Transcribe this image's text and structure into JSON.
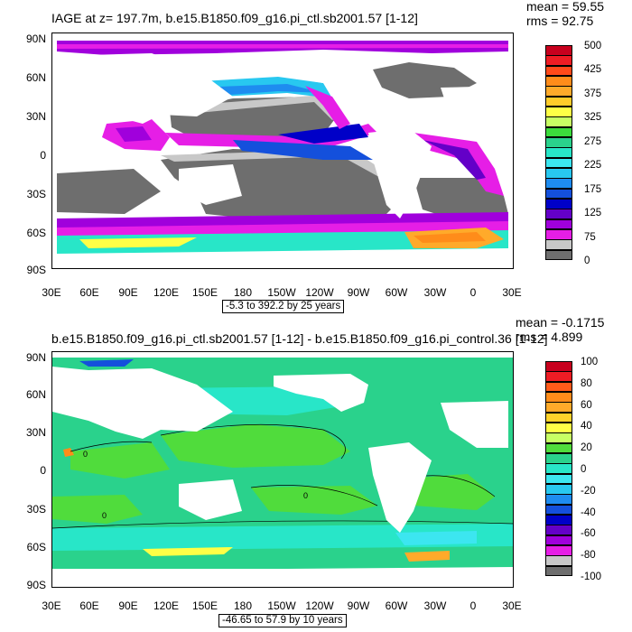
{
  "panels": [
    {
      "title": "IAGE at z= 197.7m, b.e15.B1850.f09_g16.pi_ctl.sb2001.57 [1-12]",
      "mean": "mean = 59.55",
      "rms": "rms = 92.75",
      "range": "-5.3 to 392.2 by 25 years",
      "lat_labels": [
        "90N",
        "60N",
        "30N",
        "0",
        "30S",
        "60S",
        "90S"
      ],
      "lon_labels": [
        "30E",
        "60E",
        "90E",
        "120E",
        "150E",
        "180",
        "150W",
        "120W",
        "90W",
        "60W",
        "30W",
        "0",
        "30E"
      ],
      "colorbar": {
        "labels": [
          "500",
          "425",
          "375",
          "325",
          "275",
          "225",
          "175",
          "125",
          "75",
          "0"
        ],
        "colors": [
          "#c8001e",
          "#ee1c24",
          "#ff4a1a",
          "#ff8c1a",
          "#ffaa2a",
          "#ffcc2a",
          "#ffff46",
          "#c8ff64",
          "#3cdc3c",
          "#2ad28c",
          "#28e6c8",
          "#3ce6f0",
          "#28c8f0",
          "#1e8cf0",
          "#1450dc",
          "#0000c8",
          "#6400c8",
          "#a000dc",
          "#e61ee6",
          "#c8c8c8",
          "#6e6e6e"
        ]
      }
    },
    {
      "title": "b.e15.B1850.f09_g16.pi_ctl.sb2001.57 [1-12] - b.e15.B1850.f09_g16.pi_control.36 [1-12]",
      "mean": "mean = -0.1715",
      "rms": "rms = 4.899",
      "range": "-46.65 to 57.9 by 10 years",
      "contour_label": "0",
      "lat_labels": [
        "90N",
        "60N",
        "30N",
        "0",
        "30S",
        "60S",
        "90S"
      ],
      "lon_labels": [
        "30E",
        "60E",
        "90E",
        "120E",
        "150E",
        "180",
        "150W",
        "120W",
        "90W",
        "60W",
        "30W",
        "0",
        "30E"
      ],
      "colorbar": {
        "labels": [
          "100",
          "80",
          "60",
          "40",
          "20",
          "0",
          "-20",
          "-40",
          "-60",
          "-80",
          "-100"
        ],
        "colors": [
          "#c8001e",
          "#ee1c24",
          "#ff5a1a",
          "#ff8c1a",
          "#ffaa2a",
          "#ffd22a",
          "#ffff46",
          "#c8ff64",
          "#50dc3c",
          "#2ad28c",
          "#28e6c8",
          "#3ce6f0",
          "#28c8f0",
          "#1e8cf0",
          "#1450dc",
          "#0000c8",
          "#6400c8",
          "#a000dc",
          "#e61ee6",
          "#c8c8c8",
          "#6e6e6e"
        ]
      }
    }
  ]
}
